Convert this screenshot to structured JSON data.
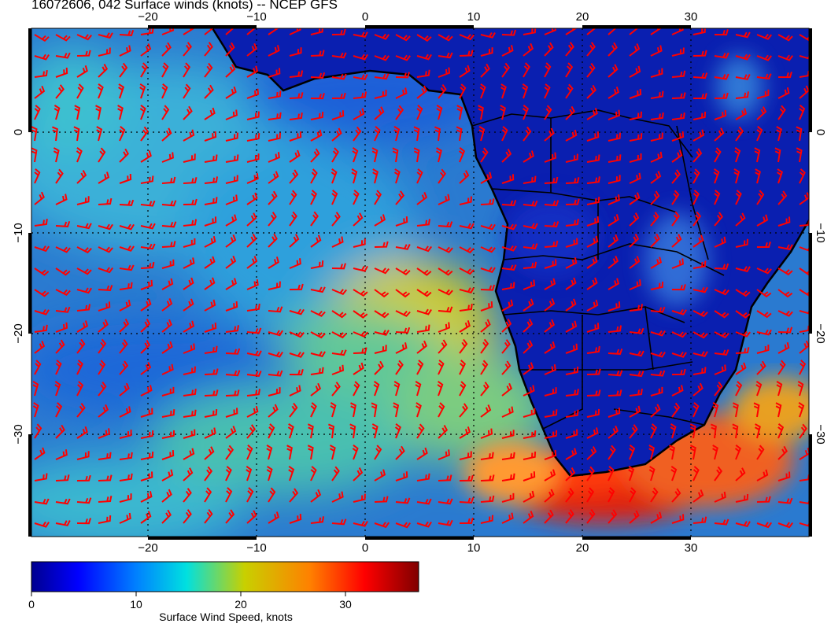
{
  "title": "16072606, 042 Surface winds (knots) -- NCEP GFS",
  "map": {
    "lon_range": [
      -31.5,
      40.5
    ],
    "lat_range": [
      -40.5,
      10.5
    ],
    "lon_ticks": [
      -20,
      -10,
      0,
      10,
      20,
      30
    ],
    "lat_ticks": [
      0,
      -10,
      -20,
      -30
    ],
    "lon_tick_labels": [
      "−20",
      "−10",
      "0",
      "10",
      "20",
      "30"
    ],
    "lat_tick_labels": [
      "0",
      "−10",
      "−20",
      "−30"
    ],
    "gridlines": "dotted",
    "variable": "Surface Wind Speed, knots"
  },
  "colorbar": {
    "label": "Surface Wind Speed, knots",
    "ticks": [
      0,
      10,
      20,
      30
    ],
    "tick_labels": [
      "0",
      "10",
      "20",
      "30"
    ],
    "range": [
      0,
      37
    ],
    "colors": [
      "#00008f",
      "#0000ff",
      "#0080ff",
      "#00e0e0",
      "#c8d000",
      "#ff8000",
      "#ff0000",
      "#800000"
    ]
  },
  "colors": {
    "barbs": "#ff0000",
    "coast": "#000000"
  }
}
